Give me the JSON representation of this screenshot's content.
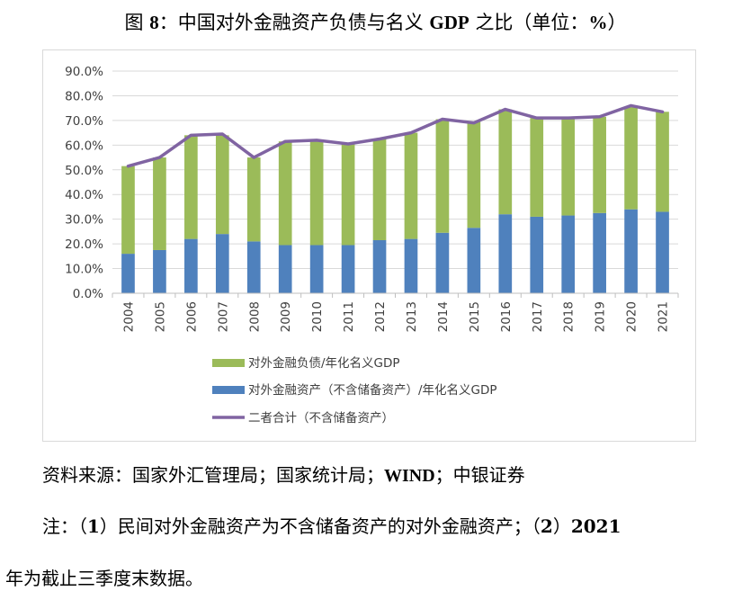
{
  "title": {
    "prefix": "图",
    "num": "8",
    "text": "：中国对外金融资产负债与名义",
    "gdp": "GDP",
    "suffix": "之比（单位：",
    "pct": "%",
    "close": "）"
  },
  "source": {
    "text1": "资料来源：国家外汇管理局；国家统计局；",
    "wind": "WIND",
    "text2": "；中银证券"
  },
  "note": {
    "line1_a": "注：（",
    "n1": "1",
    "line1_b": "）民间对外金融资产为不含储备资产的对外金融资产；（",
    "n2": "2",
    "line1_c": "）",
    "year": "2021",
    "line2": "年为截止三季度末数据。"
  },
  "colors": {
    "liabilities": "#9bbb59",
    "assets": "#4f81bd",
    "total": "#8064a2",
    "grid": "#d9d9d9",
    "axis": "#bfbfbf"
  },
  "chart_data": {
    "type": "bar",
    "stacked": true,
    "categories": [
      "2004",
      "2005",
      "2006",
      "2007",
      "2008",
      "2009",
      "2010",
      "2011",
      "2012",
      "2013",
      "2014",
      "2015",
      "2016",
      "2017",
      "2018",
      "2019",
      "2020",
      "2021"
    ],
    "yticks": [
      "0.0%",
      "10.0%",
      "20.0%",
      "30.0%",
      "40.0%",
      "50.0%",
      "60.0%",
      "70.0%",
      "80.0%",
      "90.0%"
    ],
    "ylim": [
      0,
      90
    ],
    "series": [
      {
        "name": "对外金融资产（不含储备资产）/年化名义GDP",
        "kind": "bar",
        "values": [
          16.0,
          17.5,
          22.0,
          24.0,
          21.0,
          19.5,
          19.5,
          19.5,
          21.5,
          22.0,
          24.5,
          26.5,
          32.0,
          31.0,
          31.5,
          32.5,
          34.0,
          33.0
        ]
      },
      {
        "name": "对外金融负债/年化名义GDP",
        "kind": "bar",
        "values": [
          35.5,
          37.5,
          42.0,
          40.0,
          34.0,
          42.0,
          42.5,
          41.0,
          41.0,
          43.0,
          46.0,
          43.0,
          42.5,
          40.0,
          39.5,
          39.0,
          41.5,
          40.5
        ]
      },
      {
        "name": "二者合计（不含储备资产）",
        "kind": "line",
        "values": [
          51.5,
          55.0,
          64.0,
          64.5,
          55.0,
          61.5,
          62.0,
          60.5,
          62.5,
          65.0,
          70.5,
          69.0,
          74.5,
          71.0,
          71.0,
          71.5,
          76.0,
          73.5
        ]
      }
    ],
    "legend": [
      "对外金融负债/年化名义GDP",
      "对外金融资产（不含储备资产）/年化名义GDP",
      "二者合计（不含储备资产）"
    ],
    "legend_position": "bottom",
    "grid": true
  }
}
